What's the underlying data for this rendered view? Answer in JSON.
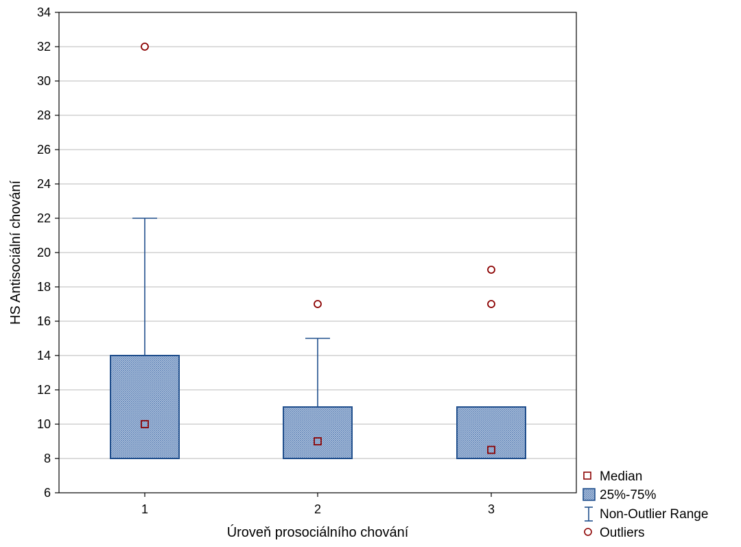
{
  "chart_data": {
    "type": "boxplot",
    "title": "",
    "xlabel": "Úroveň prosociálního chování",
    "ylabel": "HS Antisociální chování",
    "ylim": [
      6,
      34
    ],
    "yticks": [
      6,
      8,
      10,
      12,
      14,
      16,
      18,
      20,
      22,
      24,
      26,
      28,
      30,
      32,
      34
    ],
    "ytick_labels": [
      "6",
      "8",
      "10",
      "12",
      "14",
      "16",
      "18",
      "20",
      "22",
      "24",
      "26",
      "28",
      "30",
      "32",
      "34"
    ],
    "grid": true,
    "categories": [
      "1",
      "2",
      "3"
    ],
    "boxes": [
      {
        "category": "1",
        "median": 10,
        "q1": 8,
        "q3": 14,
        "whisker_low": 8,
        "whisker_high": 22,
        "outliers": [
          32
        ]
      },
      {
        "category": "2",
        "median": 9,
        "q1": 8,
        "q3": 11,
        "whisker_low": 8,
        "whisker_high": 15,
        "outliers": [
          17
        ]
      },
      {
        "category": "3",
        "median": 8.5,
        "q1": 8,
        "q3": 11,
        "whisker_low": 8,
        "whisker_high": 11,
        "outliers": [
          17,
          19
        ]
      }
    ],
    "legend": {
      "position": "bottom-right",
      "items": [
        {
          "label": "Median",
          "symbol": "square"
        },
        {
          "label": "25%-75%",
          "symbol": "box"
        },
        {
          "label": "Non-Outlier Range",
          "symbol": "whisker"
        },
        {
          "label": "Outliers",
          "symbol": "circle"
        }
      ]
    },
    "colors": {
      "box_stroke": "#1f4e8c",
      "box_fill": "#a9bfdc",
      "whisker": "#1f4e8c",
      "marker": "#8b0000",
      "grid": "#c8c8c8"
    }
  }
}
